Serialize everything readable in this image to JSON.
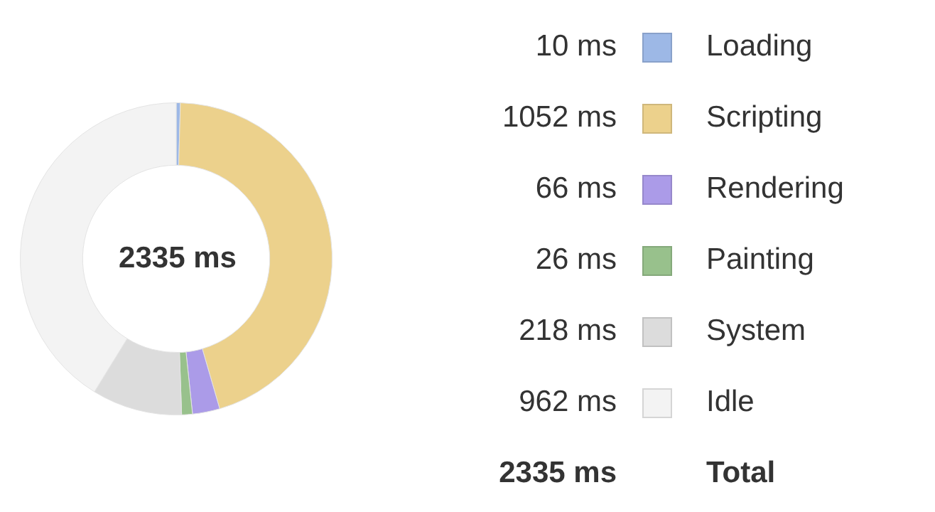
{
  "chart_data": {
    "type": "donut",
    "categories": [
      "Loading",
      "Scripting",
      "Rendering",
      "Painting",
      "System",
      "Idle"
    ],
    "values": [
      10,
      1052,
      66,
      26,
      218,
      962
    ],
    "colors": [
      "#9db8e6",
      "#ecd18c",
      "#ab9be8",
      "#98c18c",
      "#dcdcdc",
      "#f3f3f3"
    ],
    "value_labels": [
      "10 ms",
      "1052 ms",
      "66 ms",
      "26 ms",
      "218 ms",
      "962 ms"
    ],
    "annotations": [
      "2335 ms",
      "2335 ms",
      "Total"
    ],
    "legend": "right"
  }
}
